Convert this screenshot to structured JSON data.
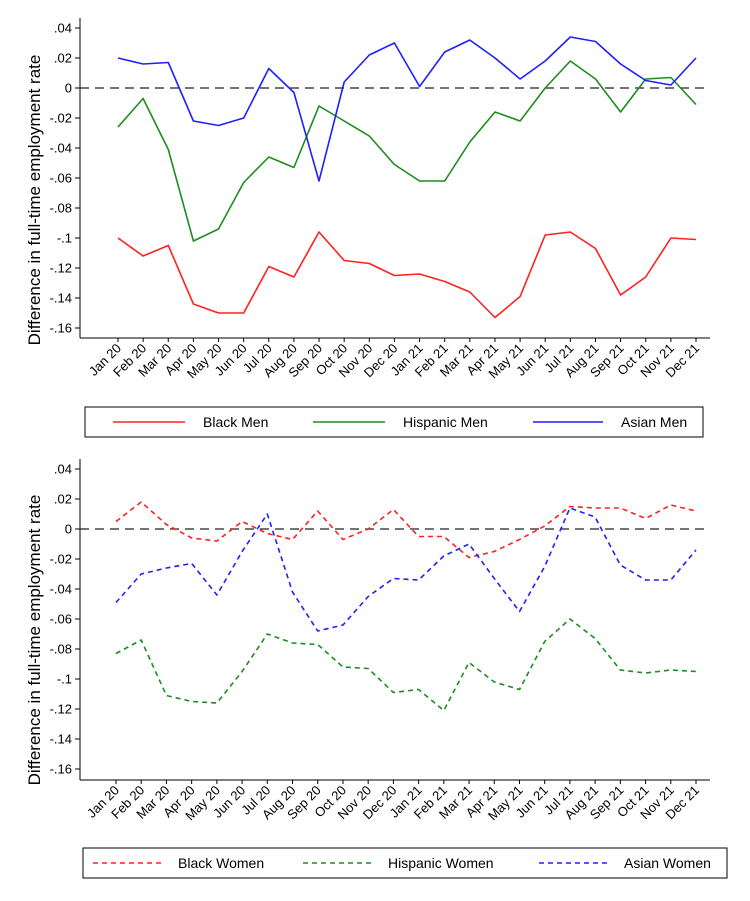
{
  "chart_data": [
    {
      "type": "line",
      "title": "",
      "xlabel": "",
      "ylabel": "Difference in full-time employment rate",
      "ylim": [
        -0.16,
        0.04
      ],
      "yticks": [
        ".04",
        ".02",
        "0",
        "-.02",
        "-.04",
        "-.06",
        "-.08",
        "-.1",
        "-.12",
        "-.14",
        "-.16"
      ],
      "ytick_values": [
        0.04,
        0.02,
        0,
        -0.02,
        -0.04,
        -0.06,
        -0.08,
        -0.1,
        -0.12,
        -0.14,
        -0.16
      ],
      "reference_line": 0,
      "categories": [
        "Jan 20",
        "Feb 20",
        "Mar 20",
        "Apr 20",
        "May 20",
        "Jun 20",
        "Jul 20",
        "Aug 20",
        "Sep 20",
        "Oct 20",
        "Nov 20",
        "Dec 20",
        "Jan 21",
        "Feb 21",
        "Mar 21",
        "Apr 21",
        "May 21",
        "Jun 21",
        "Jul 21",
        "Aug 21",
        "Sep 21",
        "Oct 21",
        "Nov 21",
        "Dec 21"
      ],
      "legend_position": "bottom",
      "series": [
        {
          "name": "Black Men",
          "color": "#ff2020",
          "dash": "solid",
          "values": [
            -0.1,
            -0.112,
            -0.105,
            -0.144,
            -0.15,
            -0.15,
            -0.119,
            -0.126,
            -0.096,
            -0.115,
            -0.117,
            -0.125,
            -0.124,
            -0.129,
            -0.136,
            -0.153,
            -0.139,
            -0.098,
            -0.096,
            -0.107,
            -0.138,
            -0.126,
            -0.1,
            -0.101
          ]
        },
        {
          "name": "Hispanic Men",
          "color": "#1e8c1e",
          "dash": "solid",
          "values": [
            -0.026,
            -0.007,
            -0.041,
            -0.102,
            -0.094,
            -0.063,
            -0.046,
            -0.053,
            -0.012,
            -0.022,
            -0.032,
            -0.051,
            -0.062,
            -0.062,
            -0.036,
            -0.016,
            -0.022,
            0.0,
            0.018,
            0.006,
            -0.016,
            0.006,
            0.007,
            -0.011
          ]
        },
        {
          "name": "Asian Men",
          "color": "#1f1fff",
          "dash": "solid",
          "values": [
            0.02,
            0.016,
            0.017,
            -0.022,
            -0.025,
            -0.02,
            0.013,
            -0.003,
            -0.062,
            0.004,
            0.022,
            0.03,
            0.001,
            0.024,
            0.032,
            0.02,
            0.006,
            0.018,
            0.034,
            0.031,
            0.016,
            0.005,
            0.002,
            0.02
          ]
        }
      ]
    },
    {
      "type": "line",
      "title": "",
      "xlabel": "",
      "ylabel": "Difference in full-time employment rate",
      "ylim": [
        -0.16,
        0.04
      ],
      "yticks": [
        ".04",
        ".02",
        "0",
        "-.02",
        "-.04",
        "-.06",
        "-.08",
        "-.1",
        "-.12",
        "-.14",
        "-.16"
      ],
      "ytick_values": [
        0.04,
        0.02,
        0,
        -0.02,
        -0.04,
        -0.06,
        -0.08,
        -0.1,
        -0.12,
        -0.14,
        -0.16
      ],
      "reference_line": 0,
      "categories": [
        "Jan 20",
        "Feb 20",
        "Mar 20",
        "Apr 20",
        "May 20",
        "Jun 20",
        "Jul 20",
        "Aug 20",
        "Sep 20",
        "Oct 20",
        "Nov 20",
        "Dec 20",
        "Jan 21",
        "Feb 21",
        "Mar 21",
        "Apr 21",
        "May 21",
        "Jun 21",
        "Jul 21",
        "Aug 21",
        "Sep 21",
        "Oct 21",
        "Nov 21",
        "Dec 21"
      ],
      "legend_position": "bottom",
      "series": [
        {
          "name": "Black Women",
          "color": "#ff2020",
          "dash": "dashed",
          "values": [
            0.005,
            0.018,
            0.003,
            -0.006,
            -0.008,
            0.005,
            -0.003,
            -0.007,
            0.012,
            -0.007,
            0.0,
            0.013,
            -0.005,
            -0.005,
            -0.019,
            -0.015,
            -0.007,
            0.002,
            0.015,
            0.014,
            0.014,
            0.007,
            0.016,
            0.012
          ]
        },
        {
          "name": "Hispanic Women",
          "color": "#1e8c1e",
          "dash": "dashed",
          "values": [
            -0.083,
            -0.074,
            -0.111,
            -0.115,
            -0.116,
            -0.095,
            -0.07,
            -0.076,
            -0.077,
            -0.092,
            -0.093,
            -0.109,
            -0.107,
            -0.121,
            -0.089,
            -0.102,
            -0.107,
            -0.075,
            -0.06,
            -0.073,
            -0.094,
            -0.096,
            -0.094,
            -0.095
          ]
        },
        {
          "name": "Asian Women",
          "color": "#1f1fff",
          "dash": "dashed",
          "values": [
            -0.049,
            -0.03,
            -0.026,
            -0.023,
            -0.044,
            -0.015,
            0.01,
            -0.042,
            -0.068,
            -0.064,
            -0.045,
            -0.033,
            -0.034,
            -0.018,
            -0.01,
            -0.033,
            -0.055,
            -0.025,
            0.014,
            0.008,
            -0.024,
            -0.034,
            -0.034,
            -0.014
          ]
        }
      ]
    }
  ]
}
